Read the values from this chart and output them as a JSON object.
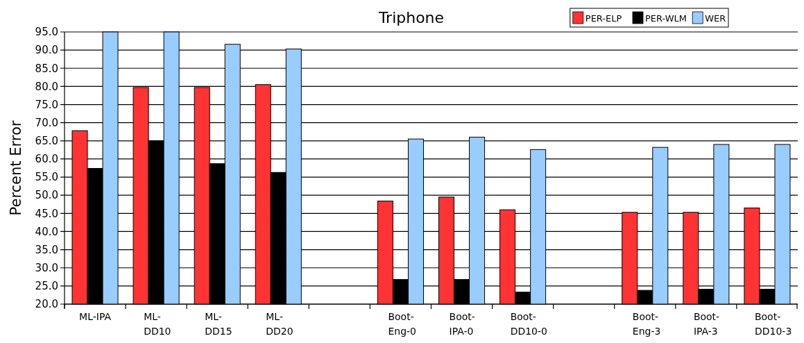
{
  "chart_data": {
    "type": "bar",
    "title": "Triphone",
    "ylabel": "Percent Error",
    "categories": [
      "ML-IPA",
      "ML-DD10",
      "ML-DD15",
      "ML-DD20",
      null,
      "Boot-Eng-0",
      "Boot-IPA-0",
      "Boot-DD10-0",
      null,
      "Boot-Eng-3",
      "Boot-IPA-3",
      "Boot-DD10-3"
    ],
    "series": [
      {
        "name": "PER-ELP",
        "color": "#ff3333",
        "values": [
          67.8,
          79.7,
          79.7,
          80.5,
          null,
          48.4,
          49.5,
          46.0,
          null,
          45.3,
          45.3,
          46.5
        ]
      },
      {
        "name": "PER-WLM",
        "color": "#000000",
        "values": [
          57.4,
          65.0,
          58.7,
          56.3,
          null,
          26.8,
          26.8,
          23.3,
          null,
          23.8,
          24.1,
          24.1
        ]
      },
      {
        "name": "WER",
        "color": "#99ccff",
        "values": [
          95.0,
          95.0,
          91.6,
          90.3,
          null,
          65.5,
          66.0,
          62.6,
          null,
          63.2,
          64.0,
          64.0
        ]
      }
    ],
    "ylim": [
      20,
      95
    ],
    "yticks": [
      {
        "value": 20,
        "label": "20.0"
      },
      {
        "value": 25,
        "label": "25.0"
      },
      {
        "value": 30,
        "label": "30.0"
      },
      {
        "value": 35,
        "label": "35.0"
      },
      {
        "value": 40,
        "label": "40.0"
      },
      {
        "value": 45,
        "label": "45.0"
      },
      {
        "value": 50,
        "label": "50.0"
      },
      {
        "value": 55,
        "label": "55.0"
      },
      {
        "value": 60,
        "label": "60.0"
      },
      {
        "value": 65,
        "label": "65.0"
      },
      {
        "value": 70,
        "label": "70.0"
      },
      {
        "value": 75,
        "label": "75.0"
      },
      {
        "value": 80,
        "label": "80.0"
      },
      {
        "value": 85,
        "label": "85.0"
      },
      {
        "value": 90,
        "label": "90.0"
      },
      {
        "value": 95,
        "label": "95.0"
      }
    ],
    "grid": "y",
    "legend": "top right"
  }
}
